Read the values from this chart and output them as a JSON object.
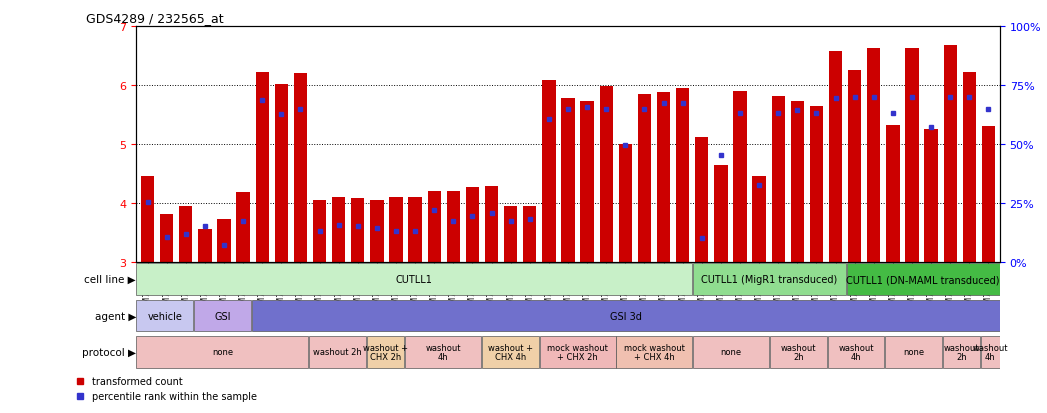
{
  "title": "GDS4289 / 232565_at",
  "samples": [
    "GSM731500",
    "GSM731501",
    "GSM731502",
    "GSM731503",
    "GSM731504",
    "GSM731505",
    "GSM731518",
    "GSM731519",
    "GSM731520",
    "GSM731506",
    "GSM731507",
    "GSM731508",
    "GSM731509",
    "GSM731510",
    "GSM731511",
    "GSM731512",
    "GSM731513",
    "GSM731514",
    "GSM731515",
    "GSM731516",
    "GSM731517",
    "GSM731521",
    "GSM731522",
    "GSM731523",
    "GSM731524",
    "GSM731525",
    "GSM731526",
    "GSM731527",
    "GSM731528",
    "GSM731529",
    "GSM731531",
    "GSM731532",
    "GSM731533",
    "GSM731534",
    "GSM731535",
    "GSM731536",
    "GSM731537",
    "GSM731538",
    "GSM731539",
    "GSM731540",
    "GSM731541",
    "GSM731542",
    "GSM731543",
    "GSM731544",
    "GSM731545"
  ],
  "bar_values": [
    4.45,
    3.82,
    3.95,
    3.55,
    3.73,
    4.18,
    6.22,
    6.01,
    6.21,
    4.05,
    4.1,
    4.08,
    4.05,
    4.1,
    4.1,
    4.2,
    4.2,
    4.27,
    4.28,
    3.95,
    3.95,
    6.08,
    5.78,
    5.72,
    5.98,
    5.0,
    5.85,
    5.88,
    5.95,
    5.12,
    4.65,
    5.9,
    4.45,
    5.82,
    5.72,
    5.65,
    6.58,
    6.25,
    6.62,
    5.32,
    6.62,
    5.25,
    6.68,
    6.22,
    5.3
  ],
  "percentile_values": [
    4.02,
    3.42,
    3.48,
    3.6,
    3.28,
    3.7,
    5.75,
    5.5,
    5.6,
    3.52,
    3.62,
    3.6,
    3.58,
    3.52,
    3.52,
    3.88,
    3.7,
    3.78,
    3.83,
    3.7,
    3.73,
    5.42,
    5.6,
    5.63,
    5.6,
    4.98,
    5.6,
    5.7,
    5.7,
    3.4,
    4.82,
    5.52,
    4.3,
    5.52,
    5.58,
    5.52,
    5.78,
    5.8,
    5.8,
    5.52,
    5.8,
    5.28,
    5.8,
    5.8,
    5.6
  ],
  "ylim": [
    3,
    7
  ],
  "yticks": [
    3,
    4,
    5,
    6,
    7
  ],
  "right_yticks": [
    0,
    25,
    50,
    75,
    100
  ],
  "bar_color": "#cc0000",
  "percentile_color": "#3333cc",
  "cell_line_groups": [
    {
      "label": "CUTLL1",
      "start": 0,
      "end": 29,
      "color": "#c8f0c8"
    },
    {
      "label": "CUTLL1 (MigR1 transduced)",
      "start": 29,
      "end": 37,
      "color": "#90dd90"
    },
    {
      "label": "CUTLL1 (DN-MAML transduced)",
      "start": 37,
      "end": 45,
      "color": "#44bb44"
    }
  ],
  "agent_groups": [
    {
      "label": "vehicle",
      "start": 0,
      "end": 3,
      "color": "#c8c8f0"
    },
    {
      "label": "GSI",
      "start": 3,
      "end": 6,
      "color": "#c0a8e8"
    },
    {
      "label": "GSI 3d",
      "start": 6,
      "end": 45,
      "color": "#7070cc"
    }
  ],
  "protocol_groups": [
    {
      "label": "none",
      "start": 0,
      "end": 9,
      "color": "#f0c0c0"
    },
    {
      "label": "washout 2h",
      "start": 9,
      "end": 12,
      "color": "#f0c0c0"
    },
    {
      "label": "washout +\nCHX 2h",
      "start": 12,
      "end": 14,
      "color": "#f0d0a8"
    },
    {
      "label": "washout\n4h",
      "start": 14,
      "end": 18,
      "color": "#f0c0c0"
    },
    {
      "label": "washout +\nCHX 4h",
      "start": 18,
      "end": 21,
      "color": "#f0d0a8"
    },
    {
      "label": "mock washout\n+ CHX 2h",
      "start": 21,
      "end": 25,
      "color": "#f0b8b8"
    },
    {
      "label": "mock washout\n+ CHX 4h",
      "start": 25,
      "end": 29,
      "color": "#f0c0b0"
    },
    {
      "label": "none",
      "start": 29,
      "end": 33,
      "color": "#f0c0c0"
    },
    {
      "label": "washout\n2h",
      "start": 33,
      "end": 36,
      "color": "#f0c0c0"
    },
    {
      "label": "washout\n4h",
      "start": 36,
      "end": 39,
      "color": "#f0c0c0"
    },
    {
      "label": "none",
      "start": 39,
      "end": 42,
      "color": "#f0c0c0"
    },
    {
      "label": "washout\n2h",
      "start": 42,
      "end": 44,
      "color": "#f0c0c0"
    },
    {
      "label": "washout\n4h",
      "start": 44,
      "end": 45,
      "color": "#f0c0c0"
    }
  ]
}
